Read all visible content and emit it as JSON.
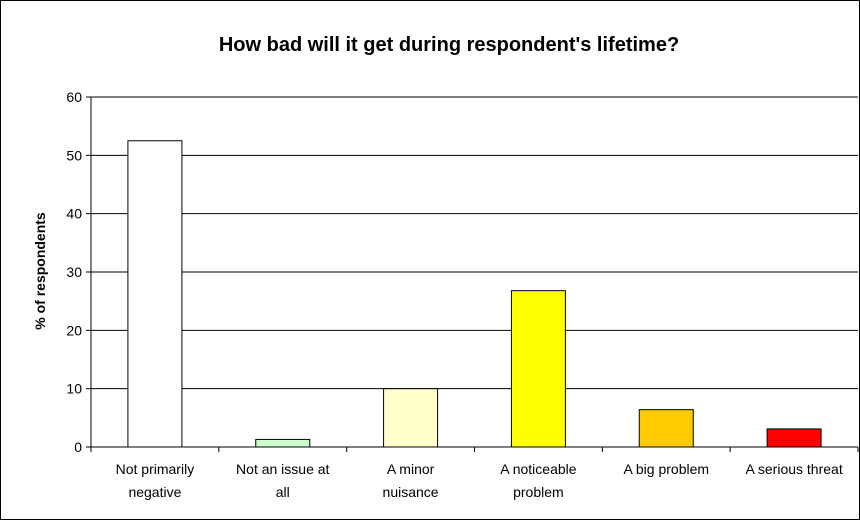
{
  "chart_data": {
    "type": "bar",
    "title": "How bad will it get during respondent's lifetime?",
    "xlabel": "",
    "ylabel": "% of respondents",
    "ylim": [
      0,
      60
    ],
    "yticks": [
      0,
      10,
      20,
      30,
      40,
      50,
      60
    ],
    "grid": true,
    "legend": "none",
    "categories": [
      [
        "Not primarily",
        "negative"
      ],
      [
        "Not an issue at",
        "all"
      ],
      [
        "A minor",
        "nuisance"
      ],
      [
        "A noticeable",
        "problem"
      ],
      [
        "A big problem"
      ],
      [
        "A serious threat"
      ]
    ],
    "values": [
      52.5,
      1.3,
      10.0,
      26.8,
      6.4,
      3.1
    ],
    "colors": [
      "#ffffff",
      "#ccffcc",
      "#ffffcc",
      "#ffff00",
      "#ffcc00",
      "#ff0000"
    ]
  }
}
